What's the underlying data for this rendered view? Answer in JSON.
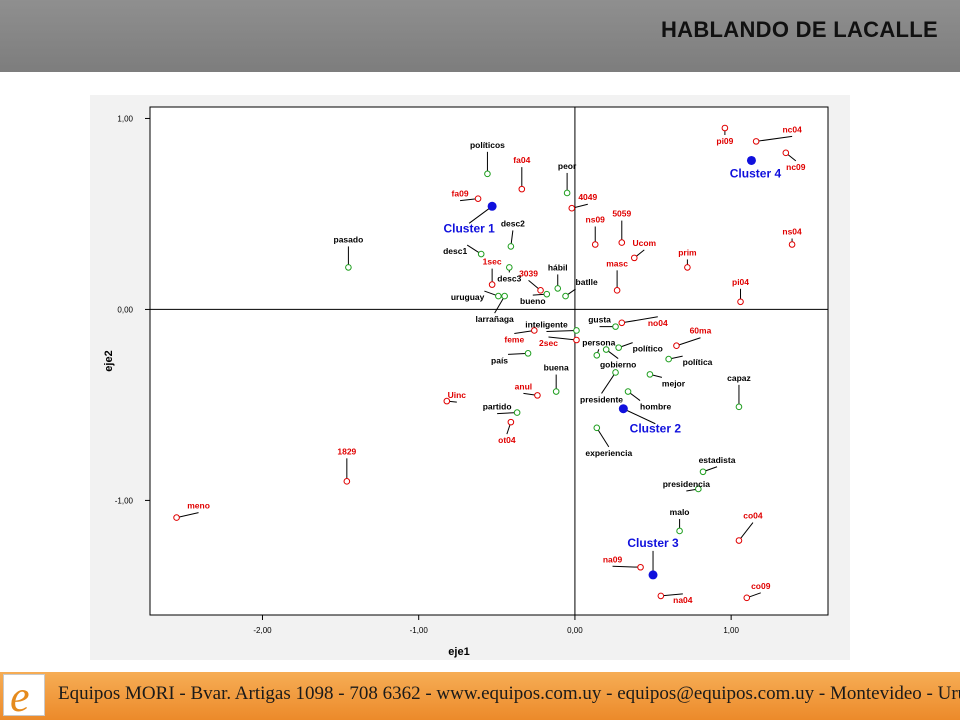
{
  "header": {
    "title": "HABLANDO DE LACALLE"
  },
  "footer": {
    "logo_letter": "e",
    "text": "Equipos MORI - Bvar. Artigas 1098 - 708 6362 - www.equipos.com.uy - equipos@equipos.com.uy - Montevideo - Uruguay"
  },
  "colors": {
    "red": "#e00000",
    "green": "#1e9e1e",
    "blue": "#1010dd",
    "black": "#000000"
  },
  "chart_data": {
    "type": "scatter",
    "xlabel": "eje1",
    "ylabel": "eje2",
    "xlim": [
      -2.72,
      1.62
    ],
    "ylim": [
      -1.6,
      1.06
    ],
    "xticks": [
      {
        "v": -2,
        "label": "-2,00"
      },
      {
        "v": -1,
        "label": "-1,00"
      },
      {
        "v": 0,
        "label": "0,00"
      },
      {
        "v": 1,
        "label": "1,00"
      }
    ],
    "yticks": [
      {
        "v": 1,
        "label": "1,00"
      },
      {
        "v": 0,
        "label": "0,00"
      },
      {
        "v": -1,
        "label": "-1,00"
      }
    ],
    "reference_lines": {
      "x": 0,
      "y": 0
    },
    "grid": false,
    "series": [
      {
        "name": "Words",
        "color": "green",
        "points": [
          {
            "label": "políticos",
            "x": -0.56,
            "y": 0.71
          },
          {
            "label": "peor",
            "x": -0.05,
            "y": 0.61
          },
          {
            "label": "desc2",
            "x": -0.41,
            "y": 0.33
          },
          {
            "label": "desc1",
            "x": -0.6,
            "y": 0.29
          },
          {
            "label": "desc3",
            "x": -0.42,
            "y": 0.22
          },
          {
            "label": "pasado",
            "x": -1.45,
            "y": 0.22
          },
          {
            "label": "hábil",
            "x": -0.11,
            "y": 0.11
          },
          {
            "label": "uruguay",
            "x": -0.49,
            "y": 0.07
          },
          {
            "label": "larrañaga",
            "x": -0.45,
            "y": 0.07
          },
          {
            "label": "bueno",
            "x": -0.18,
            "y": 0.08
          },
          {
            "label": "batlle",
            "x": -0.06,
            "y": 0.07
          },
          {
            "label": "inteligente",
            "x": 0.01,
            "y": -0.11
          },
          {
            "label": "gusta",
            "x": 0.26,
            "y": -0.09
          },
          {
            "label": "persona",
            "x": 0.14,
            "y": -0.24
          },
          {
            "label": "político",
            "x": 0.28,
            "y": -0.2
          },
          {
            "label": "gobierno",
            "x": 0.2,
            "y": -0.21
          },
          {
            "label": "política",
            "x": 0.6,
            "y": -0.26
          },
          {
            "label": "país",
            "x": -0.3,
            "y": -0.23
          },
          {
            "label": "buena",
            "x": -0.12,
            "y": -0.43
          },
          {
            "label": "mejor",
            "x": 0.48,
            "y": -0.34
          },
          {
            "label": "presidente",
            "x": 0.26,
            "y": -0.33
          },
          {
            "label": "hombre",
            "x": 0.34,
            "y": -0.43
          },
          {
            "label": "capaz",
            "x": 1.05,
            "y": -0.51
          },
          {
            "label": "partido",
            "x": -0.37,
            "y": -0.54
          },
          {
            "label": "experiencia",
            "x": 0.14,
            "y": -0.62
          },
          {
            "label": "estadista",
            "x": 0.82,
            "y": -0.85
          },
          {
            "label": "presidencia",
            "x": 0.79,
            "y": -0.94
          },
          {
            "label": "malo",
            "x": 0.67,
            "y": -1.16
          }
        ]
      },
      {
        "name": "Groups",
        "color": "red",
        "points": [
          {
            "label": "fa04",
            "x": -0.34,
            "y": 0.63
          },
          {
            "label": "fa09",
            "x": -0.62,
            "y": 0.58
          },
          {
            "label": "4049",
            "x": -0.02,
            "y": 0.53
          },
          {
            "label": "ns09",
            "x": 0.13,
            "y": 0.34
          },
          {
            "label": "5059",
            "x": 0.3,
            "y": 0.35
          },
          {
            "label": "Ucom",
            "x": 0.38,
            "y": 0.27
          },
          {
            "label": "masc",
            "x": 0.27,
            "y": 0.1
          },
          {
            "label": "prim",
            "x": 0.72,
            "y": 0.22
          },
          {
            "label": "1sec",
            "x": -0.53,
            "y": 0.13
          },
          {
            "label": "3039",
            "x": -0.22,
            "y": 0.1
          },
          {
            "label": "pi09",
            "x": 0.96,
            "y": 0.95
          },
          {
            "label": "nc04",
            "x": 1.16,
            "y": 0.88
          },
          {
            "label": "nc09",
            "x": 1.35,
            "y": 0.82
          },
          {
            "label": "ns04",
            "x": 1.39,
            "y": 0.34
          },
          {
            "label": "pi04",
            "x": 1.06,
            "y": 0.04
          },
          {
            "label": "no04",
            "x": 0.3,
            "y": -0.07
          },
          {
            "label": "feme",
            "x": -0.26,
            "y": -0.11
          },
          {
            "label": "60ma",
            "x": 0.65,
            "y": -0.19
          },
          {
            "label": "2sec",
            "x": 0.01,
            "y": -0.16
          },
          {
            "label": "anul",
            "x": -0.24,
            "y": -0.45
          },
          {
            "label": "Uinc",
            "x": -0.82,
            "y": -0.48
          },
          {
            "label": "ot04",
            "x": -0.41,
            "y": -0.59
          },
          {
            "label": "1829",
            "x": -1.46,
            "y": -0.9
          },
          {
            "label": "meno",
            "x": -2.55,
            "y": -1.09
          },
          {
            "label": "co04",
            "x": 1.05,
            "y": -1.21
          },
          {
            "label": "na09",
            "x": 0.42,
            "y": -1.35
          },
          {
            "label": "na04",
            "x": 0.55,
            "y": -1.5
          },
          {
            "label": "co09",
            "x": 1.1,
            "y": -1.51
          }
        ]
      },
      {
        "name": "Clusters",
        "color": "blue",
        "points": [
          {
            "label": "Cluster 1",
            "x": -0.53,
            "y": 0.54
          },
          {
            "label": "Cluster 2",
            "x": 0.31,
            "y": -0.52
          },
          {
            "label": "Cluster 3",
            "x": 0.5,
            "y": -1.39
          },
          {
            "label": "Cluster 4",
            "x": 1.13,
            "y": 0.78
          }
        ]
      }
    ]
  }
}
